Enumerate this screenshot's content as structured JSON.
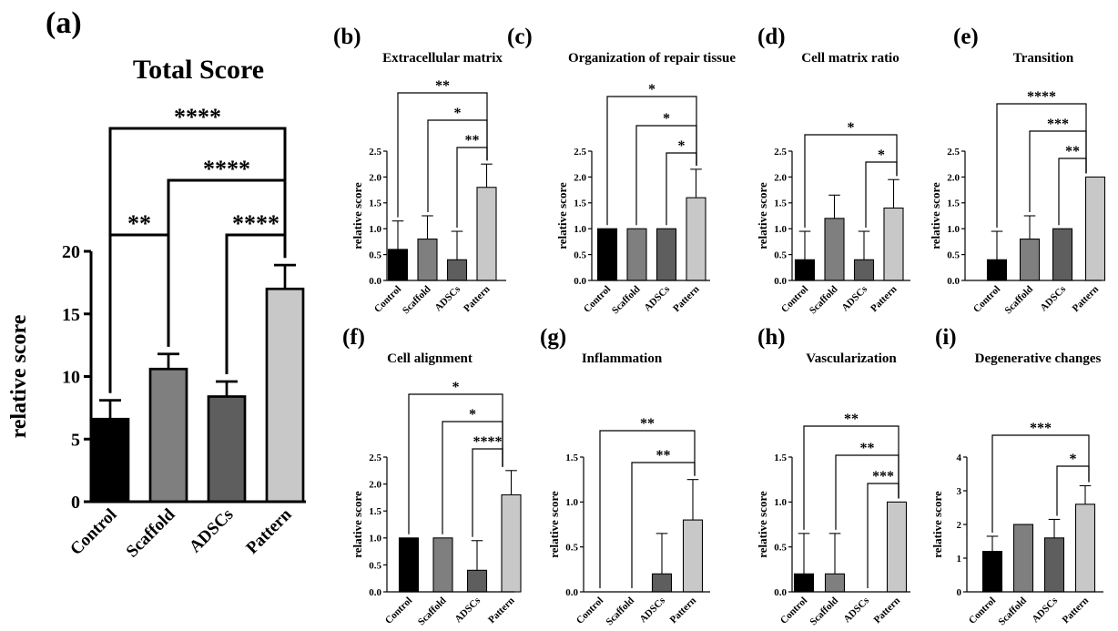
{
  "figure": {
    "panels": [
      {
        "letter": "(a)"
      },
      {
        "letter": "(b)"
      },
      {
        "letter": "(c)"
      },
      {
        "letter": "(d)"
      },
      {
        "letter": "(e)"
      },
      {
        "letter": "(f)"
      },
      {
        "letter": "(g)"
      },
      {
        "letter": "(h)"
      },
      {
        "letter": "(i)"
      }
    ]
  },
  "colors": {
    "Control": "#000000",
    "Scaffold": "#7f7f7f",
    "ADSCs": "#5e5e5e",
    "Pattern": "#c8c8c8"
  },
  "chart_data": [
    {
      "type": "bar",
      "title": "Total Score",
      "ylabel": "relative score",
      "categories": [
        "Control",
        "Scaffold",
        "ADSCs",
        "Pattern"
      ],
      "values": [
        6.6,
        10.6,
        8.4,
        17.0
      ],
      "errors": [
        1.5,
        1.2,
        1.2,
        1.9
      ],
      "ylim": [
        0,
        20
      ],
      "yticks": [
        0,
        5,
        10,
        15,
        20
      ],
      "significance": [
        {
          "from": "Control",
          "to": "Pattern",
          "label": "****"
        },
        {
          "from": "Scaffold",
          "to": "Pattern",
          "label": "****"
        },
        {
          "from": "Control",
          "to": "Scaffold",
          "label": "**"
        },
        {
          "from": "ADSCs",
          "to": "Pattern",
          "label": "****"
        }
      ]
    },
    {
      "type": "bar",
      "title": "Extracellular matrix",
      "ylabel": "relative score",
      "categories": [
        "Control",
        "Scaffold",
        "ADSCs",
        "Pattern"
      ],
      "values": [
        0.6,
        0.8,
        0.4,
        1.8
      ],
      "errors": [
        0.55,
        0.45,
        0.55,
        0.45
      ],
      "ylim": [
        0,
        2.5
      ],
      "yticks": [
        "0.0",
        "0.5",
        "1.0",
        "1.5",
        "2.0",
        "2.5"
      ],
      "significance": [
        {
          "from": "Control",
          "to": "Pattern",
          "label": "**"
        },
        {
          "from": "Scaffold",
          "to": "Pattern",
          "label": "*"
        },
        {
          "from": "ADSCs",
          "to": "Pattern",
          "label": "**"
        }
      ]
    },
    {
      "type": "bar",
      "title": "Organization of repair tissue",
      "ylabel": "relative score",
      "categories": [
        "Control",
        "Scaffold",
        "ADSCs",
        "Pattern"
      ],
      "values": [
        1.0,
        1.0,
        1.0,
        1.6
      ],
      "errors": [
        0,
        0,
        0,
        0.55
      ],
      "ylim": [
        0,
        2.5
      ],
      "yticks": [
        "0.0",
        "0.5",
        "1.0",
        "1.5",
        "2.0",
        "2.5"
      ],
      "significance": [
        {
          "from": "Control",
          "to": "Pattern",
          "label": "*"
        },
        {
          "from": "Scaffold",
          "to": "Pattern",
          "label": "*"
        },
        {
          "from": "ADSCs",
          "to": "Pattern",
          "label": "*"
        }
      ]
    },
    {
      "type": "bar",
      "title": "Cell matrix ratio",
      "ylabel": "relative score",
      "categories": [
        "Control",
        "Scaffold",
        "ADSCs",
        "Pattern"
      ],
      "values": [
        0.4,
        1.2,
        0.4,
        1.4
      ],
      "errors": [
        0.55,
        0.45,
        0.55,
        0.55
      ],
      "ylim": [
        0,
        2.5
      ],
      "yticks": [
        "0.0",
        "0.5",
        "1.0",
        "1.5",
        "2.0",
        "2.5"
      ],
      "significance": [
        {
          "from": "Control",
          "to": "Pattern",
          "label": "*"
        },
        {
          "from": "ADSCs",
          "to": "Pattern",
          "label": "*"
        }
      ]
    },
    {
      "type": "bar",
      "title": "Transition",
      "ylabel": "relative score",
      "categories": [
        "Control",
        "Scaffold",
        "ADSCs",
        "Pattern"
      ],
      "values": [
        0.4,
        0.8,
        1.0,
        2.0
      ],
      "errors": [
        0.55,
        0.45,
        0,
        0
      ],
      "ylim": [
        0,
        2.5
      ],
      "yticks": [
        "0.0",
        "0.5",
        "1.0",
        "1.5",
        "2.0",
        "2.5"
      ],
      "significance": [
        {
          "from": "Control",
          "to": "Pattern",
          "label": "****"
        },
        {
          "from": "Scaffold",
          "to": "Pattern",
          "label": "***"
        },
        {
          "from": "ADSCs",
          "to": "Pattern",
          "label": "**"
        }
      ]
    },
    {
      "type": "bar",
      "title": "Cell alignment",
      "ylabel": "relative score",
      "categories": [
        "Control",
        "Scaffold",
        "ADSCs",
        "Pattern"
      ],
      "values": [
        1.0,
        1.0,
        0.4,
        1.8
      ],
      "errors": [
        0,
        0,
        0.55,
        0.45
      ],
      "ylim": [
        0,
        2.5
      ],
      "yticks": [
        "0.0",
        "0.5",
        "1.0",
        "1.5",
        "2.0",
        "2.5"
      ],
      "significance": [
        {
          "from": "Control",
          "to": "Pattern",
          "label": "*"
        },
        {
          "from": "Scaffold",
          "to": "Pattern",
          "label": "*"
        },
        {
          "from": "ADSCs",
          "to": "Pattern",
          "label": "****"
        }
      ]
    },
    {
      "type": "bar",
      "title": "Inflammation",
      "ylabel": "relative score",
      "categories": [
        "Control",
        "Scaffold",
        "ADSCs",
        "Pattern"
      ],
      "values": [
        0,
        0,
        0.2,
        0.8
      ],
      "errors": [
        0,
        0,
        0.45,
        0.45
      ],
      "ylim": [
        0,
        1.5
      ],
      "yticks": [
        "0.0",
        "0.5",
        "1.0",
        "1.5"
      ],
      "significance": [
        {
          "from": "Control",
          "to": "Pattern",
          "label": "**"
        },
        {
          "from": "Scaffold",
          "to": "Pattern",
          "label": "**"
        }
      ]
    },
    {
      "type": "bar",
      "title": "Vascularization",
      "ylabel": "relative score",
      "categories": [
        "Control",
        "Scaffold",
        "ADSCs",
        "Pattern"
      ],
      "values": [
        0.2,
        0.2,
        0,
        1.0
      ],
      "errors": [
        0.45,
        0.45,
        0,
        0
      ],
      "ylim": [
        0,
        1.5
      ],
      "yticks": [
        "0.0",
        "0.5",
        "1.0",
        "1.5"
      ],
      "significance": [
        {
          "from": "Control",
          "to": "Pattern",
          "label": "**"
        },
        {
          "from": "Scaffold",
          "to": "Pattern",
          "label": "**"
        },
        {
          "from": "ADSCs",
          "to": "Pattern",
          "label": "***"
        }
      ]
    },
    {
      "type": "bar",
      "title": "Degenerative changes",
      "ylabel": "relative score",
      "categories": [
        "Control",
        "Scaffold",
        "ADSCs",
        "Pattern"
      ],
      "values": [
        1.2,
        2.0,
        1.6,
        2.6
      ],
      "errors": [
        0.45,
        0,
        0.55,
        0.55
      ],
      "ylim": [
        0,
        4
      ],
      "yticks": [
        "0",
        "1",
        "2",
        "3",
        "4"
      ],
      "significance": [
        {
          "from": "Control",
          "to": "Pattern",
          "label": "***"
        },
        {
          "from": "ADSCs",
          "to": "Pattern",
          "label": "*"
        }
      ]
    }
  ]
}
